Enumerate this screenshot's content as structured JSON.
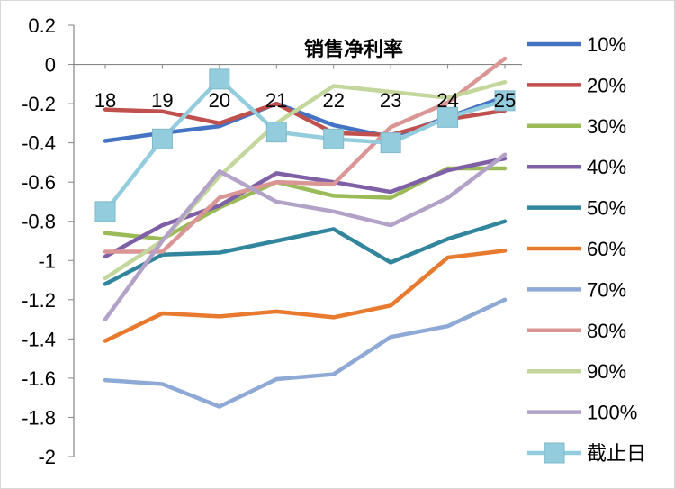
{
  "chart_data": {
    "type": "line",
    "title": "销售净利率",
    "xlabel": "",
    "ylabel": "",
    "ylim": [
      -2,
      0.2
    ],
    "yticks": [
      "0.2",
      "0",
      "-0.2",
      "-0.4",
      "-0.6",
      "-0.8",
      "-1",
      "-1.2",
      "-1.4",
      "-1.6",
      "-1.8",
      "-2"
    ],
    "ytick_values": [
      0.2,
      0,
      -0.2,
      -0.4,
      -0.6,
      -0.8,
      -1,
      -1.2,
      -1.4,
      -1.6,
      -1.8,
      -2
    ],
    "categories": [
      "18",
      "19",
      "20",
      "21",
      "22",
      "23",
      "24",
      "25"
    ],
    "grid": false,
    "legend_position": "right",
    "series": [
      {
        "name": "10%",
        "color": "#4472C4",
        "values": [
          -0.39,
          -0.35,
          -0.315,
          -0.2,
          -0.31,
          -0.37,
          -0.27,
          -0.165
        ]
      },
      {
        "name": "20%",
        "color": "#C0504D",
        "values": [
          -0.23,
          -0.24,
          -0.3,
          -0.2,
          -0.35,
          -0.36,
          -0.28,
          -0.235
        ]
      },
      {
        "name": "30%",
        "color": "#9BBB59",
        "values": [
          -0.86,
          -0.89,
          -0.73,
          -0.6,
          -0.67,
          -0.68,
          -0.53,
          -0.53
        ]
      },
      {
        "name": "40%",
        "color": "#7F5FA6",
        "values": [
          -0.98,
          -0.82,
          -0.72,
          -0.555,
          -0.6,
          -0.65,
          -0.54,
          -0.48
        ]
      },
      {
        "name": "50%",
        "color": "#31859C",
        "values": [
          -1.12,
          -0.97,
          -0.96,
          -0.9,
          -0.84,
          -1.01,
          -0.89,
          -0.8
        ]
      },
      {
        "name": "60%",
        "color": "#E77A2E",
        "values": [
          -1.41,
          -1.27,
          -1.285,
          -1.26,
          -1.29,
          -1.23,
          -0.985,
          -0.95
        ]
      },
      {
        "name": "70%",
        "color": "#8EA9D6",
        "values": [
          -1.61,
          -1.63,
          -1.745,
          -1.605,
          -1.58,
          -1.39,
          -1.335,
          -1.2
        ]
      },
      {
        "name": "80%",
        "color": "#D99694",
        "values": [
          -0.955,
          -0.955,
          -0.68,
          -0.6,
          -0.61,
          -0.32,
          -0.195,
          0.03
        ]
      },
      {
        "name": "90%",
        "color": "#C3D69B",
        "values": [
          -1.09,
          -0.9,
          -0.57,
          -0.3,
          -0.11,
          -0.14,
          -0.17,
          -0.09
        ]
      },
      {
        "name": "100%",
        "color": "#B3A2C7",
        "values": [
          -1.3,
          -0.9,
          -0.545,
          -0.7,
          -0.75,
          -0.82,
          -0.68,
          -0.46
        ]
      },
      {
        "name": "截止日",
        "color": "#93CDDD",
        "marker": "square",
        "values": [
          -0.75,
          -0.38,
          -0.075,
          -0.345,
          -0.38,
          -0.4,
          -0.27,
          -0.185
        ]
      }
    ]
  }
}
